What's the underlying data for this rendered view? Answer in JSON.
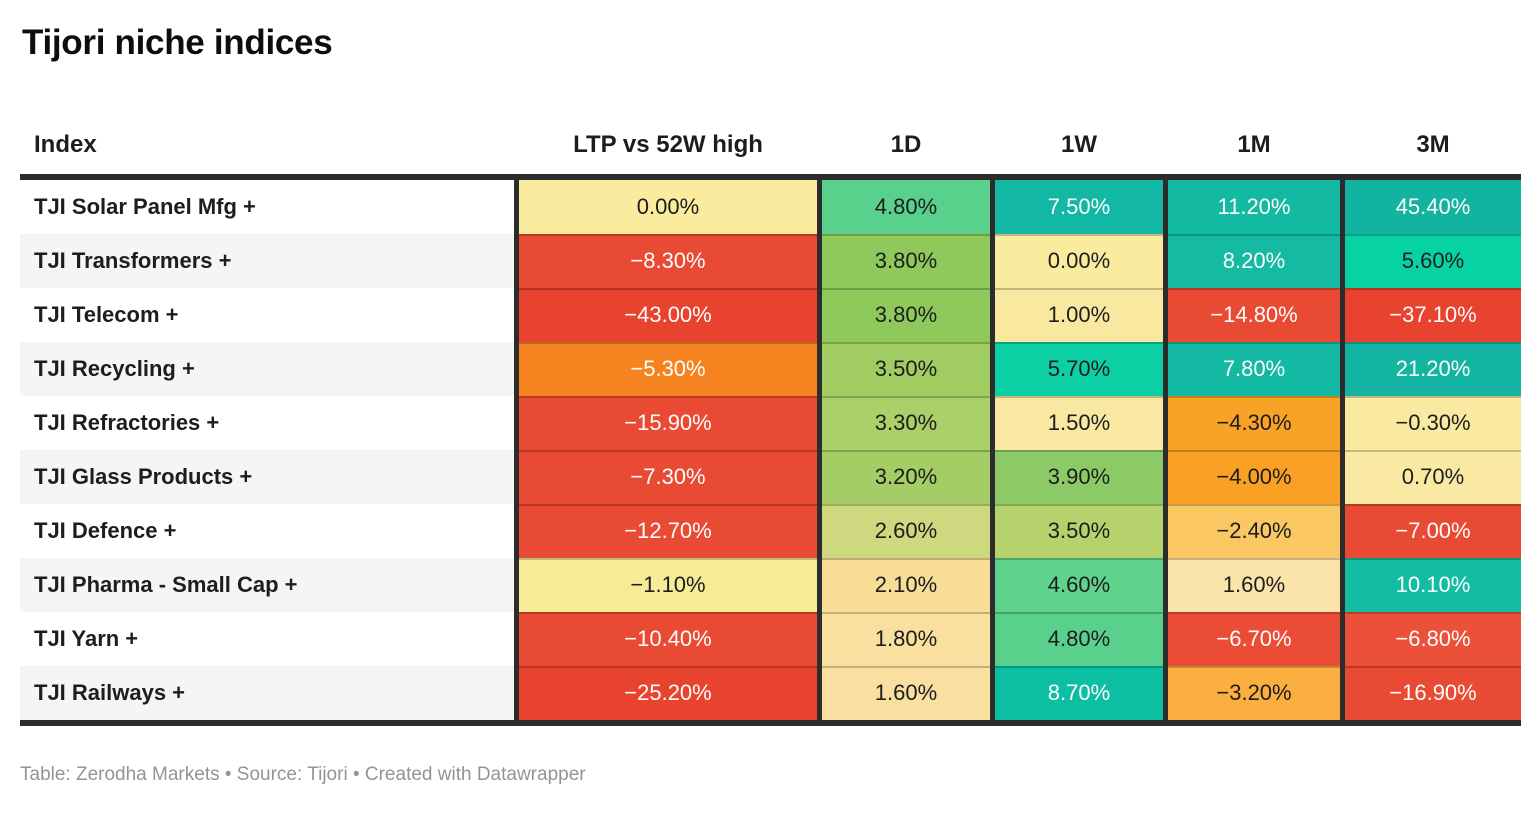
{
  "title": "Tijori niche indices",
  "footer": {
    "text": "Table: Zerodha Markets • Source: Tijori • Created with Datawrapper"
  },
  "colors": {
    "negative_strong": "#E8432E",
    "negative_orange": "#F58420",
    "neutral_yellow": "#F9EC9E",
    "positive_green": "#59D18D",
    "positive_teal": "#13B5A2",
    "header_border": "#2C2C2C",
    "row_alt_bg": "#F5F5F5",
    "footer_text": "#949494",
    "text_dark": "#1D1D1D",
    "text_light": "#FDFDFD"
  },
  "table": {
    "columns": [
      "Index",
      "LTP vs 52W high",
      "1D",
      "1W",
      "1M",
      "3M"
    ],
    "rows": [
      {
        "index": "TJI Solar Panel Mfg +",
        "cells": [
          {
            "v": "0.00%",
            "bg": "#F9EC9E",
            "fg": "#1D1D1D"
          },
          {
            "v": "4.80%",
            "bg": "#59D18D",
            "fg": "#1D1D1D"
          },
          {
            "v": "7.50%",
            "bg": "#12B8A3",
            "fg": "#FDFDFD"
          },
          {
            "v": "11.20%",
            "bg": "#14B9A2",
            "fg": "#FDFDFD"
          },
          {
            "v": "45.40%",
            "bg": "#13B3A2",
            "fg": "#FDFDFD"
          }
        ]
      },
      {
        "index": "TJI Transformers +",
        "cells": [
          {
            "v": "−8.30%",
            "bg": "#E84A33",
            "fg": "#FDFDFD"
          },
          {
            "v": "3.80%",
            "bg": "#8FC95B",
            "fg": "#1D1D1D"
          },
          {
            "v": "0.00%",
            "bg": "#F9EC9E",
            "fg": "#1D1D1D"
          },
          {
            "v": "8.20%",
            "bg": "#14BAA2",
            "fg": "#FDFDFD"
          },
          {
            "v": "5.60%",
            "bg": "#07D2A4",
            "fg": "#1D1D1D"
          }
        ]
      },
      {
        "index": "TJI Telecom +",
        "cells": [
          {
            "v": "−43.00%",
            "bg": "#E8432E",
            "fg": "#FDFDFD"
          },
          {
            "v": "3.80%",
            "bg": "#8FC95B",
            "fg": "#1D1D1D"
          },
          {
            "v": "1.00%",
            "bg": "#F9E9A0",
            "fg": "#1D1D1D"
          },
          {
            "v": "−14.80%",
            "bg": "#E84A33",
            "fg": "#FDFDFD"
          },
          {
            "v": "−37.10%",
            "bg": "#E8432E",
            "fg": "#FDFDFD"
          }
        ]
      },
      {
        "index": "TJI Recycling +",
        "cells": [
          {
            "v": "−5.30%",
            "bg": "#F58420",
            "fg": "#FDFDFD"
          },
          {
            "v": "3.50%",
            "bg": "#A0CC62",
            "fg": "#1D1D1D"
          },
          {
            "v": "5.70%",
            "bg": "#0DCFA4",
            "fg": "#1D1D1D"
          },
          {
            "v": "7.80%",
            "bg": "#13B9A2",
            "fg": "#FDFDFD"
          },
          {
            "v": "21.20%",
            "bg": "#13B5A2",
            "fg": "#FDFDFD"
          }
        ]
      },
      {
        "index": "TJI Refractories +",
        "cells": [
          {
            "v": "−15.90%",
            "bg": "#E84A33",
            "fg": "#FDFDFD"
          },
          {
            "v": "3.30%",
            "bg": "#ABD069",
            "fg": "#1D1D1D"
          },
          {
            "v": "1.50%",
            "bg": "#F9E8A1",
            "fg": "#1D1D1D"
          },
          {
            "v": "−4.30%",
            "bg": "#F9A326",
            "fg": "#1D1D1D"
          },
          {
            "v": "−0.30%",
            "bg": "#FAE9A1",
            "fg": "#1D1D1D"
          }
        ]
      },
      {
        "index": "TJI Glass Products +",
        "cells": [
          {
            "v": "−7.30%",
            "bg": "#E84A33",
            "fg": "#FDFDFD"
          },
          {
            "v": "3.20%",
            "bg": "#A5CD65",
            "fg": "#1D1D1D"
          },
          {
            "v": "3.90%",
            "bg": "#8BCA67",
            "fg": "#1D1D1D"
          },
          {
            "v": "−4.00%",
            "bg": "#F9A124",
            "fg": "#1D1D1D"
          },
          {
            "v": "0.70%",
            "bg": "#FAE9A3",
            "fg": "#1D1D1D"
          }
        ]
      },
      {
        "index": "TJI Defence +",
        "cells": [
          {
            "v": "−12.70%",
            "bg": "#E84A33",
            "fg": "#FDFDFD"
          },
          {
            "v": "2.60%",
            "bg": "#CED97F",
            "fg": "#1D1D1D"
          },
          {
            "v": "3.50%",
            "bg": "#B5D26C",
            "fg": "#1D1D1D"
          },
          {
            "v": "−2.40%",
            "bg": "#FBC763",
            "fg": "#1D1D1D"
          },
          {
            "v": "−7.00%",
            "bg": "#E84A33",
            "fg": "#FDFDFD"
          }
        ]
      },
      {
        "index": "TJI Pharma - Small Cap +",
        "cells": [
          {
            "v": "−1.10%",
            "bg": "#F6EC95",
            "fg": "#1D1D1D"
          },
          {
            "v": "2.10%",
            "bg": "#F8DD97",
            "fg": "#1D1D1D"
          },
          {
            "v": "4.60%",
            "bg": "#5FD28B",
            "fg": "#1D1D1D"
          },
          {
            "v": "1.60%",
            "bg": "#FAE4AA",
            "fg": "#1D1D1D"
          },
          {
            "v": "10.10%",
            "bg": "#12BDA4",
            "fg": "#FDFDFD"
          }
        ]
      },
      {
        "index": "TJI Yarn +",
        "cells": [
          {
            "v": "−10.40%",
            "bg": "#E84A33",
            "fg": "#FDFDFD"
          },
          {
            "v": "1.80%",
            "bg": "#F9E09F",
            "fg": "#1D1D1D"
          },
          {
            "v": "4.80%",
            "bg": "#59D18D",
            "fg": "#1D1D1D"
          },
          {
            "v": "−6.70%",
            "bg": "#EA4C35",
            "fg": "#FDFDFD"
          },
          {
            "v": "−6.80%",
            "bg": "#EB5038",
            "fg": "#FDFDFD"
          }
        ]
      },
      {
        "index": "TJI Railways +",
        "cells": [
          {
            "v": "−25.20%",
            "bg": "#E8432E",
            "fg": "#FDFDFD"
          },
          {
            "v": "1.60%",
            "bg": "#F9E0A0",
            "fg": "#1D1D1D"
          },
          {
            "v": "8.70%",
            "bg": "#0CBFA3",
            "fg": "#FDFDFD"
          },
          {
            "v": "−3.20%",
            "bg": "#FBAF41",
            "fg": "#1D1D1D"
          },
          {
            "v": "−16.90%",
            "bg": "#E84A33",
            "fg": "#FDFDFD"
          }
        ]
      }
    ]
  },
  "chart_data": {
    "type": "table",
    "title": "Tijori niche indices",
    "columns": [
      "Index",
      "LTP vs 52W high",
      "1D",
      "1W",
      "1M",
      "3M"
    ],
    "unit": "%",
    "heatmap": true,
    "rows": [
      {
        "index": "TJI Solar Panel Mfg +",
        "values": [
          0.0,
          4.8,
          7.5,
          11.2,
          45.4
        ]
      },
      {
        "index": "TJI Transformers +",
        "values": [
          -8.3,
          3.8,
          0.0,
          8.2,
          5.6
        ]
      },
      {
        "index": "TJI Telecom +",
        "values": [
          -43.0,
          3.8,
          1.0,
          -14.8,
          -37.1
        ]
      },
      {
        "index": "TJI Recycling +",
        "values": [
          -5.3,
          3.5,
          5.7,
          7.8,
          21.2
        ]
      },
      {
        "index": "TJI Refractories +",
        "values": [
          -15.9,
          3.3,
          1.5,
          -4.3,
          -0.3
        ]
      },
      {
        "index": "TJI Glass Products +",
        "values": [
          -7.3,
          3.2,
          3.9,
          -4.0,
          0.7
        ]
      },
      {
        "index": "TJI Defence +",
        "values": [
          -12.7,
          2.6,
          3.5,
          -2.4,
          -7.0
        ]
      },
      {
        "index": "TJI Pharma - Small Cap +",
        "values": [
          -1.1,
          2.1,
          4.6,
          1.6,
          10.1
        ]
      },
      {
        "index": "TJI Yarn +",
        "values": [
          -10.4,
          1.8,
          4.8,
          -6.7,
          -6.8
        ]
      },
      {
        "index": "TJI Railways +",
        "values": [
          -25.2,
          1.6,
          8.7,
          -3.2,
          -16.9
        ]
      }
    ]
  }
}
